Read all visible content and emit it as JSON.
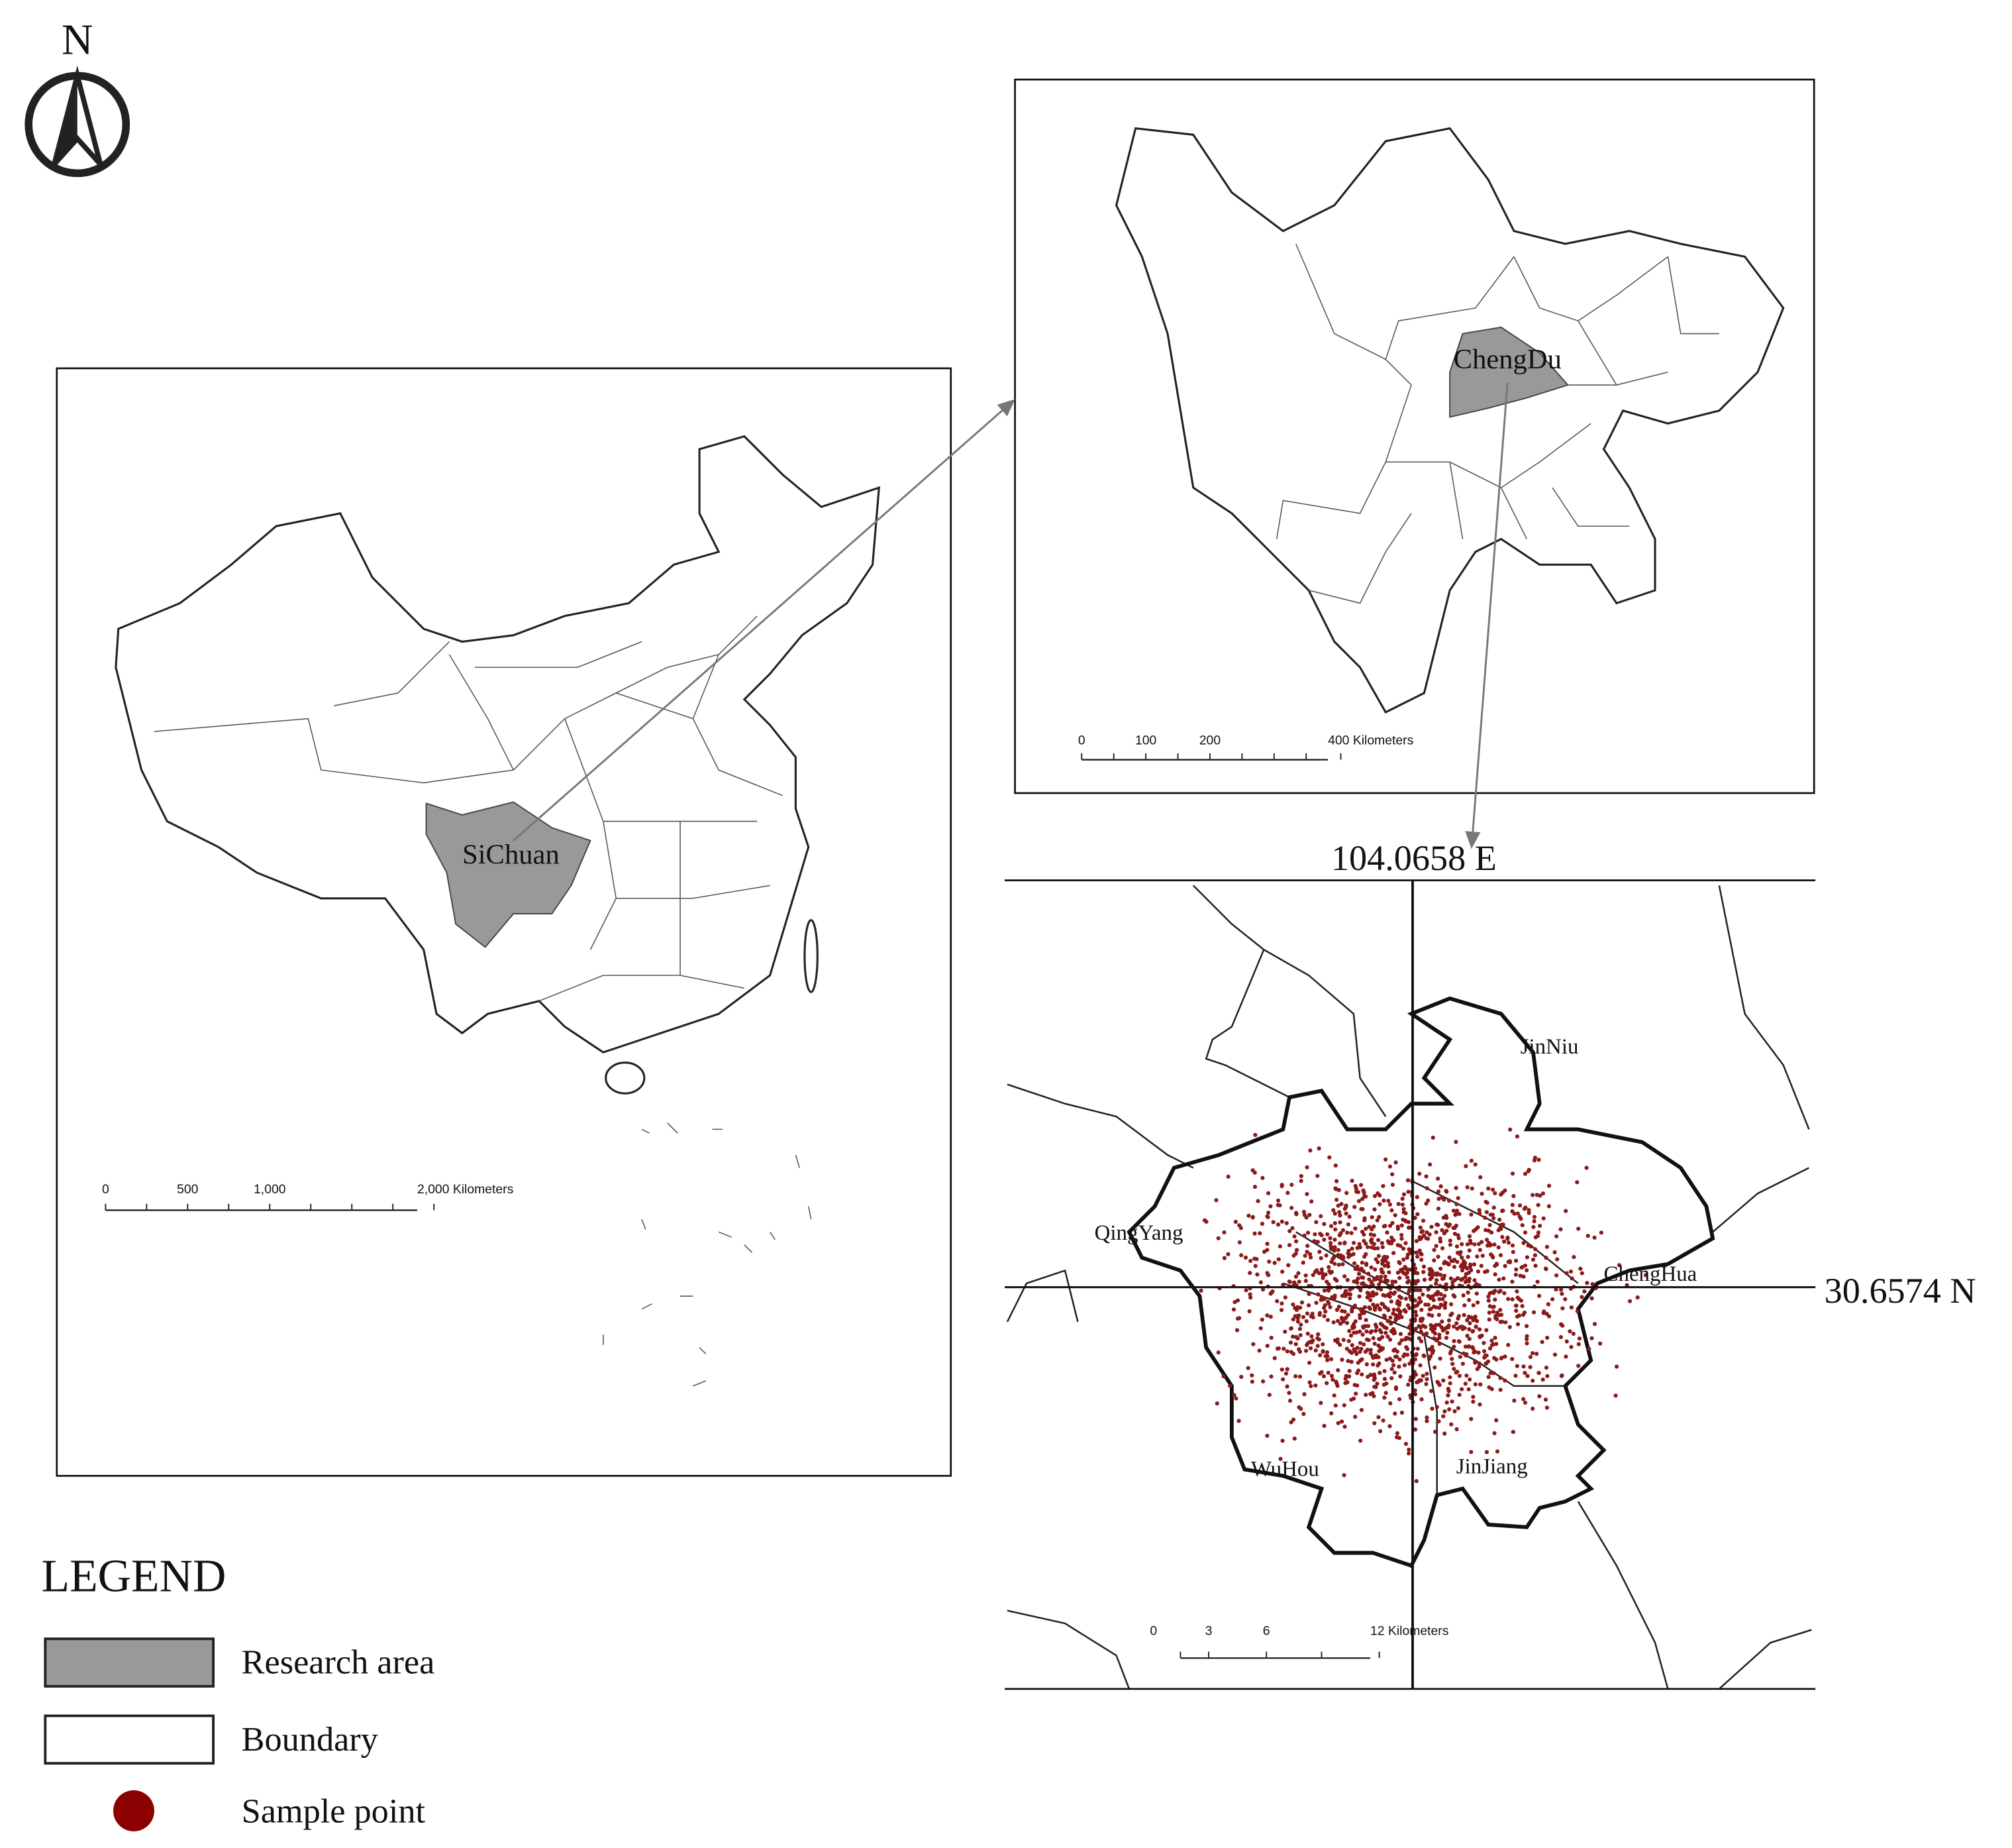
{
  "north": "N",
  "china_map": {
    "label": "SiChuan",
    "scale": [
      "0",
      "500",
      "1,000",
      "2,000 Kilometers"
    ]
  },
  "sichuan_map": {
    "label": "ChengDu",
    "scale": [
      "0",
      "100",
      "200",
      "400 Kilometers"
    ]
  },
  "chengdu_map": {
    "longitude": "104.0658 E",
    "latitude": "30.6574 N",
    "districts": [
      "JinNiu",
      "QingYang",
      "ChengHua",
      "WuHou",
      "JinJiang"
    ],
    "scale": [
      "0",
      "3",
      "6",
      "12 Kilometers"
    ]
  },
  "legend": {
    "title": "LEGEND",
    "items": [
      "Research area",
      "Boundary",
      "Sample point"
    ]
  }
}
